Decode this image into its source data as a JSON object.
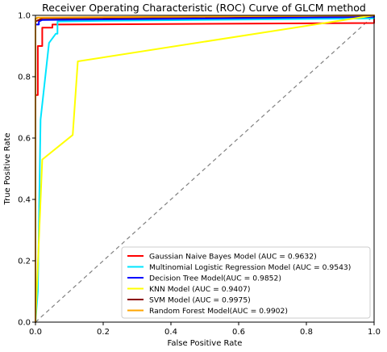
{
  "chart_data": {
    "type": "line",
    "title": "Receiver Operating Characteristic (ROC) Curve of GLCM method",
    "xlabel": "False Positive Rate",
    "ylabel": "True Positive Rate",
    "xlim": [
      0,
      1
    ],
    "ylim": [
      0,
      1
    ],
    "xticks": [
      "0.0",
      "0.2",
      "0.4",
      "0.6",
      "0.8",
      "1.0"
    ],
    "yticks": [
      "0.0",
      "0.2",
      "0.4",
      "0.6",
      "0.8",
      "1.0"
    ],
    "grid": false,
    "legend_position": "lower-right",
    "diagonal": {
      "style": "dashed",
      "color": "#808080",
      "points": [
        [
          0,
          0
        ],
        [
          1,
          1
        ]
      ]
    },
    "series": [
      {
        "name": "Gaussian Naive Bayes Model (AUC = 0.9632)",
        "color": "#ff0000",
        "points": [
          [
            0,
            0
          ],
          [
            0,
            0.74
          ],
          [
            0.007,
            0.74
          ],
          [
            0.007,
            0.9
          ],
          [
            0.02,
            0.9
          ],
          [
            0.02,
            0.96
          ],
          [
            0.05,
            0.96
          ],
          [
            0.05,
            0.97
          ],
          [
            1,
            0.975
          ],
          [
            1,
            1
          ]
        ]
      },
      {
        "name": "Multinomial Logistic Regression Model (AUC = 0.9543)",
        "color": "#00e5ff",
        "points": [
          [
            0,
            0
          ],
          [
            0.007,
            0.1
          ],
          [
            0.015,
            0.66
          ],
          [
            0.04,
            0.91
          ],
          [
            0.06,
            0.94
          ],
          [
            0.065,
            0.94
          ],
          [
            0.065,
            0.98
          ],
          [
            0.2,
            0.982
          ],
          [
            1,
            0.99
          ],
          [
            1,
            1
          ]
        ]
      },
      {
        "name": "Decision Tree Model(AUC = 0.9852)",
        "color": "#0000ff",
        "points": [
          [
            0,
            0
          ],
          [
            0,
            0.97
          ],
          [
            0.01,
            0.97
          ],
          [
            0.01,
            0.98
          ],
          [
            0.02,
            0.985
          ],
          [
            1,
            0.995
          ],
          [
            1,
            1
          ]
        ]
      },
      {
        "name": "KNN Model (AUC = 0.9407)",
        "color": "#ffff00",
        "points": [
          [
            0,
            0
          ],
          [
            0.02,
            0.53
          ],
          [
            0.11,
            0.61
          ],
          [
            0.125,
            0.85
          ],
          [
            1,
            1
          ]
        ]
      },
      {
        "name": "SVM Model (AUC = 0.9975)",
        "color": "#8b0000",
        "points": [
          [
            0,
            0
          ],
          [
            0,
            0.98
          ],
          [
            0.01,
            0.985
          ],
          [
            0.02,
            0.99
          ],
          [
            1,
            1
          ]
        ]
      },
      {
        "name": "Random Forest Model(AUC = 0.9902)",
        "color": "#ffa500",
        "points": [
          [
            0,
            0
          ],
          [
            0,
            0.99
          ],
          [
            0.005,
            0.99
          ],
          [
            0.005,
            0.993
          ],
          [
            1,
            1
          ]
        ]
      }
    ]
  }
}
